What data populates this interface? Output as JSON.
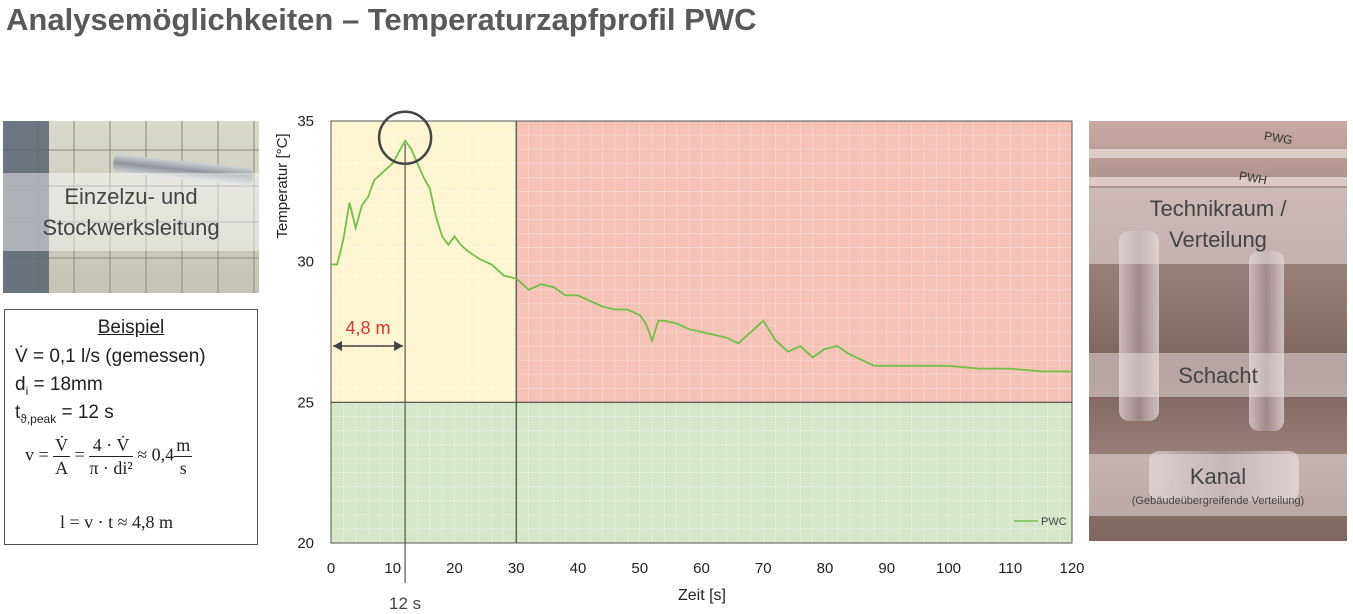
{
  "title": "Analysemöglichkeiten – Temperaturzapfprofil PWC",
  "left_photo": {
    "label_line1": "Einzelzu- und",
    "label_line2": "Stockwerksleitung"
  },
  "example": {
    "heading": "Beispiel",
    "flow": "V̇ = 0,1 l/s (gemessen)",
    "di_main": "d",
    "di_sub": "i",
    "di_rest": " = 18mm",
    "t_main": "t",
    "t_sub": "ϑ,peak",
    "t_rest": " = 12 s",
    "eq1_lhs": "v =",
    "eq1_f1_num": "V̇",
    "eq1_f1_den": "A",
    "eq1_eq": "=",
    "eq1_f2_num": "4 · V̇",
    "eq1_f2_den": "π · di²",
    "eq1_approx": "≈ 0,4",
    "eq1_f3_num": "m",
    "eq1_f3_den": "s",
    "eq2": "l = v · t ≈ 4,8 m"
  },
  "right_photo": {
    "label1_line1": "Technikraum /",
    "label1_line2": "Verteilung",
    "label2": "Schacht",
    "label3": "Kanal",
    "label3_sub": "(Gebäudeübergreifende Verteilung)",
    "pipe_labels": [
      "PWG",
      "PWH"
    ]
  },
  "annotations": {
    "distance": "4,8 m",
    "peak_time": "12 s"
  },
  "colors": {
    "zone_yellow": "#fcf5cf",
    "zone_red": "#f4c3b5",
    "zone_green": "#d6e6c8",
    "line": "#77bd4c",
    "annotation_red": "#d33a2c",
    "circle": "#444444"
  },
  "chart_data": {
    "type": "line",
    "title": "",
    "xlabel": "Zeit [s]",
    "ylabel": "Temperatur [°C]",
    "xlim": [
      0,
      120
    ],
    "ylim": [
      20,
      35
    ],
    "xticks": [
      0,
      10,
      20,
      30,
      40,
      50,
      60,
      70,
      80,
      90,
      100,
      110,
      120
    ],
    "yticks": [
      20,
      25,
      30,
      35
    ],
    "grid": true,
    "legend_position": "bottom-right",
    "zones": [
      {
        "x": [
          0,
          30
        ],
        "y": [
          25,
          35
        ],
        "color": "yellow"
      },
      {
        "x": [
          30,
          120
        ],
        "y": [
          25,
          35
        ],
        "color": "red"
      },
      {
        "x": [
          0,
          120
        ],
        "y": [
          20,
          25
        ],
        "color": "green"
      }
    ],
    "series": [
      {
        "name": "PWC",
        "x": [
          0,
          1,
          2,
          3,
          4,
          5,
          6,
          7,
          8,
          9,
          10,
          11,
          12,
          13,
          14,
          15,
          16,
          17,
          18,
          19,
          20,
          21,
          22,
          24,
          26,
          28,
          30,
          32,
          34,
          36,
          38,
          40,
          42,
          44,
          46,
          48,
          50,
          51,
          52,
          53,
          54,
          56,
          58,
          60,
          62,
          64,
          66,
          68,
          70,
          72,
          74,
          76,
          78,
          80,
          82,
          84,
          86,
          88,
          90,
          95,
          100,
          105,
          110,
          115,
          120
        ],
        "y": [
          29.9,
          29.9,
          30.8,
          32.1,
          31.2,
          32.0,
          32.3,
          32.9,
          33.1,
          33.3,
          33.5,
          33.9,
          34.3,
          34.0,
          33.5,
          33.0,
          32.6,
          31.6,
          30.9,
          30.6,
          30.9,
          30.6,
          30.4,
          30.1,
          29.9,
          29.5,
          29.4,
          29.0,
          29.2,
          29.1,
          28.8,
          28.8,
          28.6,
          28.4,
          28.3,
          28.3,
          28.1,
          27.8,
          27.2,
          27.9,
          27.9,
          27.8,
          27.6,
          27.5,
          27.4,
          27.3,
          27.1,
          27.5,
          27.9,
          27.2,
          26.8,
          27.0,
          26.6,
          26.9,
          27.0,
          26.7,
          26.5,
          26.3,
          26.3,
          26.3,
          26.3,
          26.2,
          26.2,
          26.1,
          26.1
        ]
      }
    ]
  }
}
